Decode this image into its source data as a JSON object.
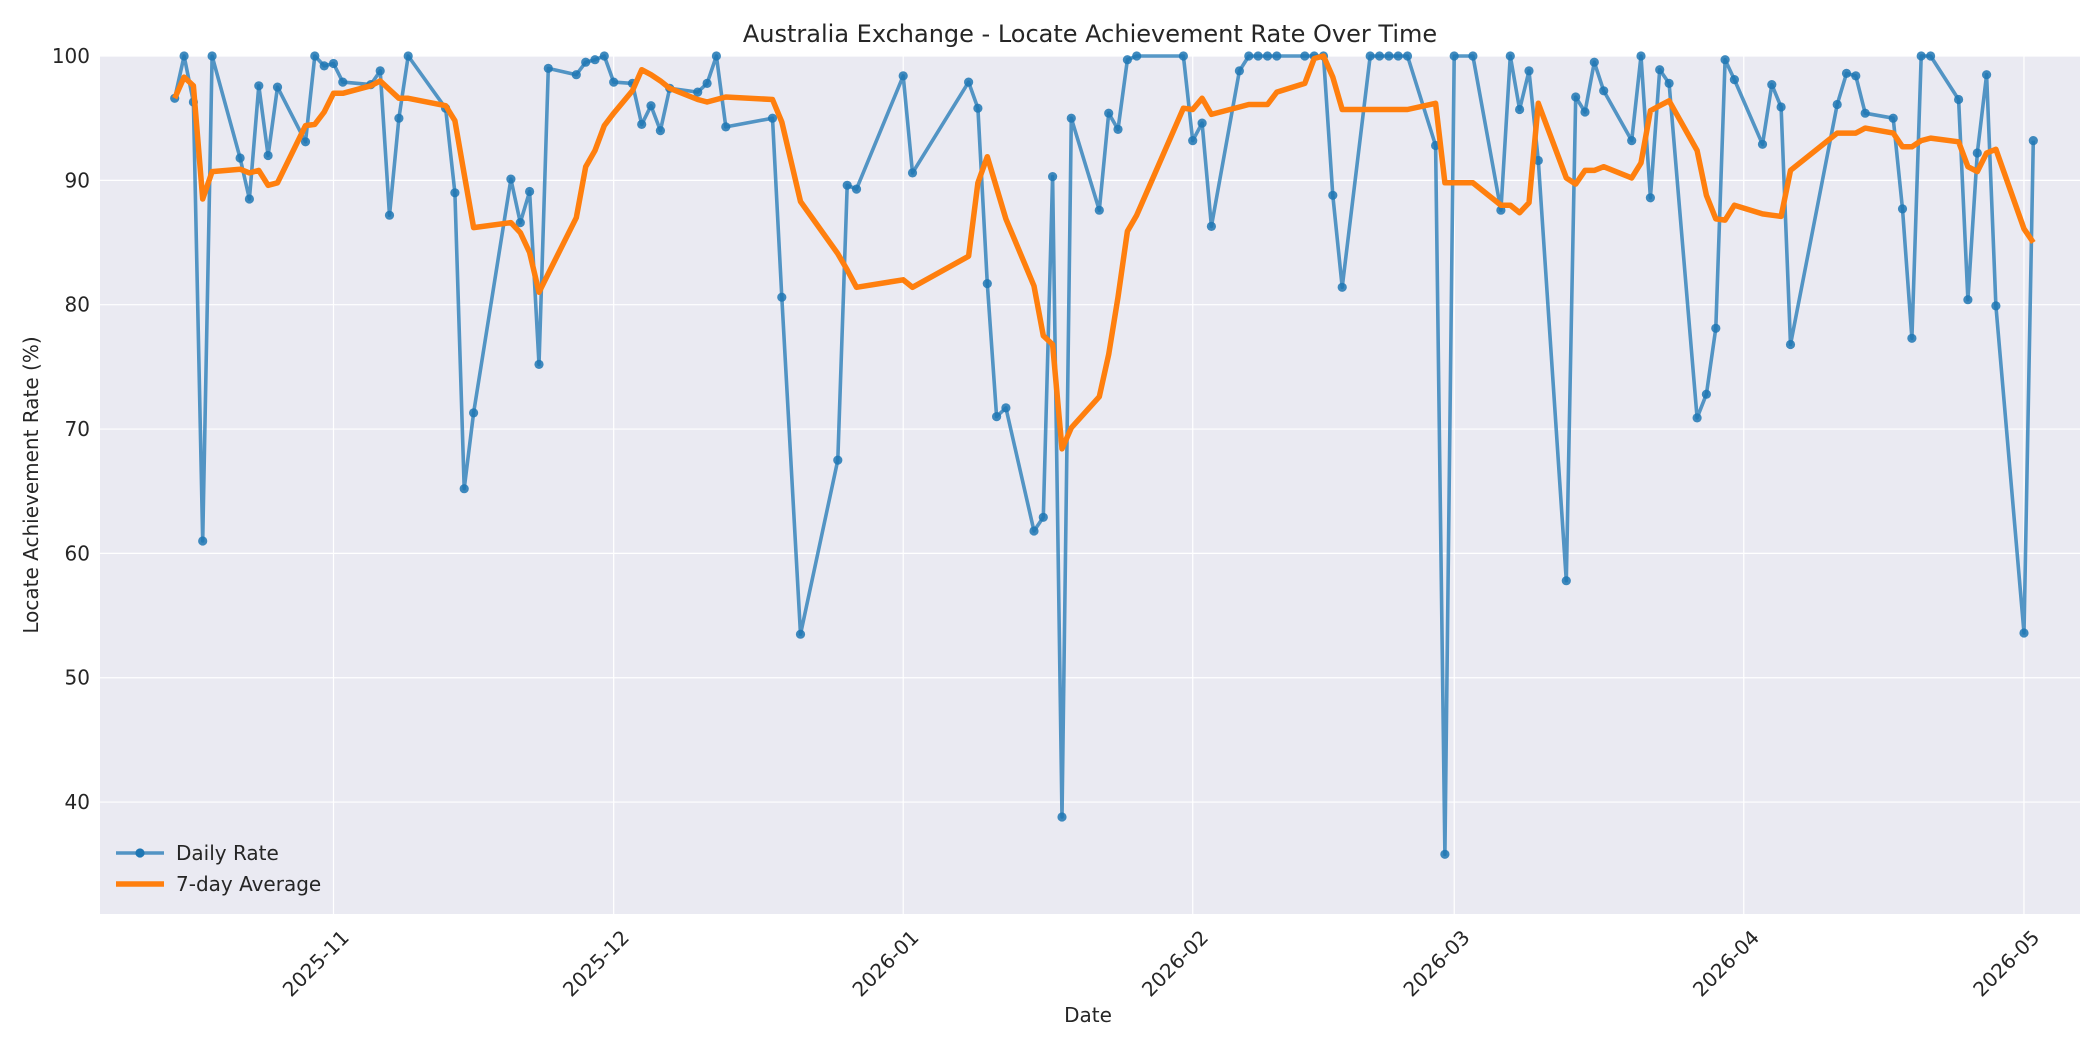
{
  "chart_data": {
    "type": "line",
    "title": "Australia Exchange - Locate Achievement Rate Over Time",
    "xlabel": "Date",
    "ylabel": "Locate Achievement Rate (%)",
    "x_range": [
      "2025-10-07",
      "2026-05-07"
    ],
    "ylim": [
      31,
      100
    ],
    "x_ticks": [
      "2025-11",
      "2025-12",
      "2026-01",
      "2026-02",
      "2026-03",
      "2026-04",
      "2026-05"
    ],
    "y_ticks": [
      40,
      50,
      60,
      70,
      80,
      90,
      100
    ],
    "grid": true,
    "legend_position": "bottom-left",
    "colors": {
      "daily": "#1f77b4",
      "average": "#ff7f0e",
      "plot_background": "#eaeaf2",
      "grid": "#ffffff"
    },
    "series": [
      {
        "name": "Daily Rate",
        "style": "line-with-markers",
        "points": [
          [
            "2025-10-15",
            96.6
          ],
          [
            "2025-10-16",
            100.0
          ],
          [
            "2025-10-17",
            96.3
          ],
          [
            "2025-10-18",
            61.0
          ],
          [
            "2025-10-19",
            100.0
          ],
          [
            "2025-10-22",
            91.8
          ],
          [
            "2025-10-23",
            88.5
          ],
          [
            "2025-10-24",
            97.6
          ],
          [
            "2025-10-25",
            92.0
          ],
          [
            "2025-10-26",
            97.5
          ],
          [
            "2025-10-29",
            93.1
          ],
          [
            "2025-10-30",
            100.0
          ],
          [
            "2025-10-31",
            99.2
          ],
          [
            "2025-11-01",
            99.4
          ],
          [
            "2025-11-02",
            97.9
          ],
          [
            "2025-11-05",
            97.7
          ],
          [
            "2025-11-06",
            98.8
          ],
          [
            "2025-11-07",
            87.2
          ],
          [
            "2025-11-08",
            95.0
          ],
          [
            "2025-11-09",
            100.0
          ],
          [
            "2025-11-13",
            95.8
          ],
          [
            "2025-11-14",
            89.0
          ],
          [
            "2025-11-15",
            65.2
          ],
          [
            "2025-11-16",
            71.3
          ],
          [
            "2025-11-20",
            90.1
          ],
          [
            "2025-11-21",
            86.6
          ],
          [
            "2025-11-22",
            89.1
          ],
          [
            "2025-11-23",
            75.2
          ],
          [
            "2025-11-24",
            99.0
          ],
          [
            "2025-11-27",
            98.5
          ],
          [
            "2025-11-28",
            99.5
          ],
          [
            "2025-11-29",
            99.7
          ],
          [
            "2025-11-30",
            100.0
          ],
          [
            "2025-12-01",
            97.9
          ],
          [
            "2025-12-03",
            97.8
          ],
          [
            "2025-12-04",
            94.5
          ],
          [
            "2025-12-05",
            96.0
          ],
          [
            "2025-12-06",
            94.0
          ],
          [
            "2025-12-07",
            97.4
          ],
          [
            "2025-12-10",
            97.1
          ],
          [
            "2025-12-11",
            97.8
          ],
          [
            "2025-12-12",
            100.0
          ],
          [
            "2025-12-13",
            94.3
          ],
          [
            "2025-12-18",
            95.0
          ],
          [
            "2025-12-19",
            80.6
          ],
          [
            "2025-12-21",
            53.5
          ],
          [
            "2025-12-25",
            67.5
          ],
          [
            "2025-12-26",
            89.6
          ],
          [
            "2025-12-27",
            89.3
          ],
          [
            "2026-01-01",
            98.4
          ],
          [
            "2026-01-02",
            90.6
          ],
          [
            "2026-01-08",
            97.9
          ],
          [
            "2026-01-09",
            95.8
          ],
          [
            "2026-01-10",
            81.7
          ],
          [
            "2026-01-11",
            71.0
          ],
          [
            "2026-01-12",
            71.7
          ],
          [
            "2026-01-15",
            61.8
          ],
          [
            "2026-01-16",
            62.9
          ],
          [
            "2026-01-17",
            90.3
          ],
          [
            "2026-01-18",
            38.8
          ],
          [
            "2026-01-19",
            95.0
          ],
          [
            "2026-01-22",
            87.6
          ],
          [
            "2026-01-23",
            95.4
          ],
          [
            "2026-01-24",
            94.1
          ],
          [
            "2026-01-25",
            99.7
          ],
          [
            "2026-01-26",
            100.0
          ],
          [
            "2026-01-31",
            100.0
          ],
          [
            "2026-02-01",
            93.2
          ],
          [
            "2026-02-02",
            94.6
          ],
          [
            "2026-02-03",
            86.3
          ],
          [
            "2026-02-06",
            98.8
          ],
          [
            "2026-02-07",
            100.0
          ],
          [
            "2026-02-08",
            100.0
          ],
          [
            "2026-02-09",
            100.0
          ],
          [
            "2026-02-10",
            100.0
          ],
          [
            "2026-02-13",
            100.0
          ],
          [
            "2026-02-14",
            100.0
          ],
          [
            "2026-02-15",
            100.0
          ],
          [
            "2026-02-16",
            88.8
          ],
          [
            "2026-02-17",
            81.4
          ],
          [
            "2026-02-20",
            100.0
          ],
          [
            "2026-02-21",
            100.0
          ],
          [
            "2026-02-22",
            100.0
          ],
          [
            "2026-02-23",
            100.0
          ],
          [
            "2026-02-24",
            100.0
          ],
          [
            "2026-02-27",
            92.8
          ],
          [
            "2026-02-28",
            35.8
          ],
          [
            "2026-03-01",
            100.0
          ],
          [
            "2026-03-03",
            100.0
          ],
          [
            "2026-03-06",
            87.6
          ],
          [
            "2026-03-07",
            100.0
          ],
          [
            "2026-03-08",
            95.7
          ],
          [
            "2026-03-09",
            98.8
          ],
          [
            "2026-03-10",
            91.6
          ],
          [
            "2026-03-13",
            57.8
          ],
          [
            "2026-03-14",
            96.7
          ],
          [
            "2026-03-15",
            95.5
          ],
          [
            "2026-03-16",
            99.5
          ],
          [
            "2026-03-17",
            97.2
          ],
          [
            "2026-03-20",
            93.2
          ],
          [
            "2026-03-21",
            100.0
          ],
          [
            "2026-03-22",
            88.6
          ],
          [
            "2026-03-23",
            98.9
          ],
          [
            "2026-03-24",
            97.8
          ],
          [
            "2026-03-27",
            70.9
          ],
          [
            "2026-03-28",
            72.8
          ],
          [
            "2026-03-29",
            78.1
          ],
          [
            "2026-03-30",
            99.7
          ],
          [
            "2026-03-31",
            98.1
          ],
          [
            "2026-04-03",
            92.9
          ],
          [
            "2026-04-04",
            97.7
          ],
          [
            "2026-04-05",
            95.9
          ],
          [
            "2026-04-06",
            76.8
          ],
          [
            "2026-04-11",
            96.1
          ],
          [
            "2026-04-12",
            98.6
          ],
          [
            "2026-04-13",
            98.4
          ],
          [
            "2026-04-14",
            95.4
          ],
          [
            "2026-04-17",
            95.0
          ],
          [
            "2026-04-18",
            87.7
          ],
          [
            "2026-04-19",
            77.3
          ],
          [
            "2026-04-20",
            100.0
          ],
          [
            "2026-04-21",
            100.0
          ],
          [
            "2026-04-24",
            96.5
          ],
          [
            "2026-04-25",
            80.4
          ],
          [
            "2026-04-26",
            92.2
          ],
          [
            "2026-04-27",
            98.5
          ],
          [
            "2026-04-28",
            79.9
          ],
          [
            "2026-05-01",
            53.6
          ],
          [
            "2026-05-02",
            93.2
          ]
        ]
      },
      {
        "name": "7-day Average",
        "style": "line",
        "points": [
          [
            "2025-10-15",
            96.6
          ],
          [
            "2025-10-16",
            98.3
          ],
          [
            "2025-10-17",
            97.6
          ],
          [
            "2025-10-18",
            88.5
          ],
          [
            "2025-10-19",
            90.7
          ],
          [
            "2025-10-22",
            90.9
          ],
          [
            "2025-10-23",
            90.6
          ],
          [
            "2025-10-24",
            90.8
          ],
          [
            "2025-10-25",
            89.6
          ],
          [
            "2025-10-26",
            89.8
          ],
          [
            "2025-10-29",
            94.4
          ],
          [
            "2025-10-30",
            94.5
          ],
          [
            "2025-10-31",
            95.5
          ],
          [
            "2025-11-01",
            97.0
          ],
          [
            "2025-11-02",
            97.0
          ],
          [
            "2025-11-05",
            97.6
          ],
          [
            "2025-11-06",
            98.0
          ],
          [
            "2025-11-07",
            97.3
          ],
          [
            "2025-11-08",
            96.6
          ],
          [
            "2025-11-09",
            96.6
          ],
          [
            "2025-11-13",
            96.0
          ],
          [
            "2025-11-14",
            94.8
          ],
          [
            "2025-11-15",
            90.5
          ],
          [
            "2025-11-16",
            86.2
          ],
          [
            "2025-11-20",
            86.6
          ],
          [
            "2025-11-21",
            85.8
          ],
          [
            "2025-11-22",
            84.2
          ],
          [
            "2025-11-23",
            81.0
          ],
          [
            "2025-11-24",
            82.5
          ],
          [
            "2025-11-27",
            87.0
          ],
          [
            "2025-11-28",
            91.1
          ],
          [
            "2025-11-29",
            92.4
          ],
          [
            "2025-11-30",
            94.4
          ],
          [
            "2025-12-01",
            95.4
          ],
          [
            "2025-12-03",
            97.2
          ],
          [
            "2025-12-04",
            98.9
          ],
          [
            "2025-12-05",
            98.5
          ],
          [
            "2025-12-06",
            98.0
          ],
          [
            "2025-12-07",
            97.4
          ],
          [
            "2025-12-10",
            96.5
          ],
          [
            "2025-12-11",
            96.3
          ],
          [
            "2025-12-12",
            96.5
          ],
          [
            "2025-12-13",
            96.7
          ],
          [
            "2025-12-18",
            96.5
          ],
          [
            "2025-12-19",
            94.7
          ],
          [
            "2025-12-21",
            88.3
          ],
          [
            "2025-12-25",
            84.1
          ],
          [
            "2025-12-26",
            82.8
          ],
          [
            "2025-12-27",
            81.4
          ],
          [
            "2026-01-01",
            82.0
          ],
          [
            "2026-01-02",
            81.4
          ],
          [
            "2026-01-08",
            83.9
          ],
          [
            "2026-01-09",
            89.8
          ],
          [
            "2026-01-10",
            91.9
          ],
          [
            "2026-01-11",
            89.4
          ],
          [
            "2026-01-12",
            86.9
          ],
          [
            "2026-01-15",
            81.5
          ],
          [
            "2026-01-16",
            77.5
          ],
          [
            "2026-01-17",
            76.8
          ],
          [
            "2026-01-18",
            68.4
          ],
          [
            "2026-01-19",
            70.1
          ],
          [
            "2026-01-22",
            72.6
          ],
          [
            "2026-01-23",
            76.0
          ],
          [
            "2026-01-24",
            80.6
          ],
          [
            "2026-01-25",
            85.9
          ],
          [
            "2026-01-26",
            87.2
          ],
          [
            "2026-01-31",
            95.8
          ],
          [
            "2026-02-01",
            95.7
          ],
          [
            "2026-02-02",
            96.6
          ],
          [
            "2026-02-03",
            95.3
          ],
          [
            "2026-02-06",
            95.9
          ],
          [
            "2026-02-07",
            96.1
          ],
          [
            "2026-02-08",
            96.1
          ],
          [
            "2026-02-09",
            96.1
          ],
          [
            "2026-02-10",
            97.1
          ],
          [
            "2026-02-13",
            97.8
          ],
          [
            "2026-02-14",
            99.8
          ],
          [
            "2026-02-15",
            100.0
          ],
          [
            "2026-02-16",
            98.3
          ],
          [
            "2026-02-17",
            95.7
          ],
          [
            "2026-02-20",
            95.7
          ],
          [
            "2026-02-21",
            95.7
          ],
          [
            "2026-02-22",
            95.7
          ],
          [
            "2026-02-23",
            95.7
          ],
          [
            "2026-02-24",
            95.7
          ],
          [
            "2026-02-27",
            96.2
          ],
          [
            "2026-02-28",
            89.8
          ],
          [
            "2026-03-01",
            89.8
          ],
          [
            "2026-03-03",
            89.8
          ],
          [
            "2026-03-06",
            88.0
          ],
          [
            "2026-03-07",
            88.0
          ],
          [
            "2026-03-08",
            87.4
          ],
          [
            "2026-03-09",
            88.2
          ],
          [
            "2026-03-10",
            96.2
          ],
          [
            "2026-03-13",
            90.2
          ],
          [
            "2026-03-14",
            89.7
          ],
          [
            "2026-03-15",
            90.8
          ],
          [
            "2026-03-16",
            90.8
          ],
          [
            "2026-03-17",
            91.1
          ],
          [
            "2026-03-20",
            90.2
          ],
          [
            "2026-03-21",
            91.4
          ],
          [
            "2026-03-22",
            95.6
          ],
          [
            "2026-03-23",
            96.0
          ],
          [
            "2026-03-24",
            96.4
          ],
          [
            "2026-03-27",
            92.4
          ],
          [
            "2026-03-28",
            88.8
          ],
          [
            "2026-03-29",
            86.9
          ],
          [
            "2026-03-30",
            86.8
          ],
          [
            "2026-03-31",
            88.0
          ],
          [
            "2026-04-03",
            87.3
          ],
          [
            "2026-04-04",
            87.2
          ],
          [
            "2026-04-05",
            87.1
          ],
          [
            "2026-04-06",
            90.8
          ],
          [
            "2026-04-11",
            93.8
          ],
          [
            "2026-04-12",
            93.8
          ],
          [
            "2026-04-13",
            93.8
          ],
          [
            "2026-04-14",
            94.2
          ],
          [
            "2026-04-17",
            93.8
          ],
          [
            "2026-04-18",
            92.7
          ],
          [
            "2026-04-19",
            92.7
          ],
          [
            "2026-04-20",
            93.2
          ],
          [
            "2026-04-21",
            93.4
          ],
          [
            "2026-04-24",
            93.1
          ],
          [
            "2026-04-25",
            91.1
          ],
          [
            "2026-04-26",
            90.7
          ],
          [
            "2026-04-27",
            92.2
          ],
          [
            "2026-04-28",
            92.5
          ],
          [
            "2026-05-01",
            86.1
          ],
          [
            "2026-05-02",
            85.0
          ]
        ]
      }
    ]
  }
}
